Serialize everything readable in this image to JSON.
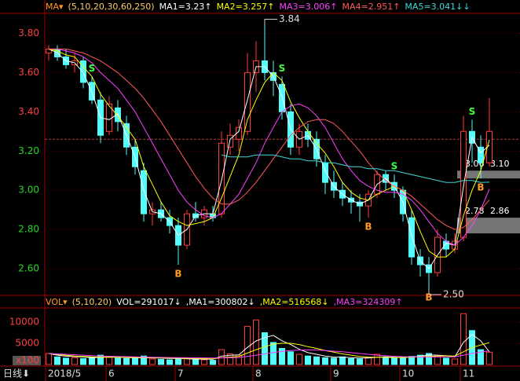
{
  "chart_data": [
    {
      "type": "candlestick",
      "header": [
        "MA▾",
        "(5,10,20,30,60,250)"
      ],
      "up_color": "#ff3c3c",
      "down_color": "#54fcfc",
      "text_up_color": "#ff4040",
      "text_down_color": "#28d828",
      "ylim": [
        2.48,
        3.89
      ],
      "yticks": [
        {
          "value": 2.6,
          "label": "2.60"
        },
        {
          "value": 2.8,
          "label": "2.80"
        },
        {
          "value": 3.0,
          "label": "3.00"
        },
        {
          "value": 3.2,
          "label": "3.20"
        },
        {
          "value": 3.4,
          "label": "3.40"
        },
        {
          "value": 3.6,
          "label": "3.60"
        },
        {
          "value": 3.8,
          "label": "3.80"
        }
      ],
      "grid": true,
      "reference_line": 3.26,
      "ohlc": [
        [
          3.7,
          3.74,
          3.66,
          3.72
        ],
        [
          3.72,
          3.74,
          3.66,
          3.68
        ],
        [
          3.68,
          3.72,
          3.62,
          3.64
        ],
        [
          3.64,
          3.7,
          3.6,
          3.66
        ],
        [
          3.66,
          3.68,
          3.52,
          3.55
        ],
        [
          3.55,
          3.58,
          3.44,
          3.46
        ],
        [
          3.46,
          3.5,
          3.24,
          3.28
        ],
        [
          3.3,
          3.48,
          3.28,
          3.44
        ],
        [
          3.42,
          3.46,
          3.3,
          3.35
        ],
        [
          3.34,
          3.38,
          3.18,
          3.22
        ],
        [
          3.22,
          3.26,
          3.08,
          3.12
        ],
        [
          3.1,
          3.14,
          2.84,
          2.88
        ],
        [
          2.88,
          2.94,
          2.82,
          2.9
        ],
        [
          2.9,
          2.94,
          2.84,
          2.86
        ],
        [
          2.86,
          2.9,
          2.78,
          2.82
        ],
        [
          2.82,
          2.86,
          2.62,
          2.72
        ],
        [
          2.72,
          2.9,
          2.7,
          2.88
        ],
        [
          2.88,
          2.94,
          2.84,
          2.86
        ],
        [
          2.86,
          2.92,
          2.82,
          2.9
        ],
        [
          2.88,
          2.92,
          2.84,
          2.86
        ],
        [
          2.88,
          3.3,
          2.86,
          3.24
        ],
        [
          3.22,
          3.34,
          3.18,
          3.28
        ],
        [
          3.26,
          3.36,
          3.2,
          3.32
        ],
        [
          3.3,
          3.7,
          3.28,
          3.6
        ],
        [
          3.6,
          3.76,
          3.5,
          3.66
        ],
        [
          3.66,
          3.84,
          3.56,
          3.6
        ],
        [
          3.6,
          3.66,
          3.48,
          3.56
        ],
        [
          3.54,
          3.58,
          3.36,
          3.4
        ],
        [
          3.4,
          3.44,
          3.18,
          3.22
        ],
        [
          3.22,
          3.34,
          3.18,
          3.3
        ],
        [
          3.3,
          3.34,
          3.22,
          3.26
        ],
        [
          3.26,
          3.3,
          3.12,
          3.16
        ],
        [
          3.14,
          3.18,
          2.98,
          3.04
        ],
        [
          3.04,
          3.1,
          2.96,
          3.0
        ],
        [
          3.0,
          3.04,
          2.92,
          2.96
        ],
        [
          2.96,
          3.0,
          2.88,
          2.94
        ],
        [
          2.94,
          2.98,
          2.84,
          2.92
        ],
        [
          2.92,
          3.0,
          2.86,
          2.98
        ],
        [
          2.98,
          3.1,
          2.96,
          3.08
        ],
        [
          3.08,
          3.1,
          3.0,
          3.04
        ],
        [
          3.04,
          3.08,
          2.96,
          3.0
        ],
        [
          3.0,
          3.02,
          2.84,
          2.88
        ],
        [
          2.86,
          2.9,
          2.62,
          2.66
        ],
        [
          2.66,
          2.7,
          2.56,
          2.62
        ],
        [
          2.62,
          2.66,
          2.5,
          2.58
        ],
        [
          2.58,
          2.8,
          2.56,
          2.76
        ],
        [
          2.74,
          2.78,
          2.66,
          2.7
        ],
        [
          2.7,
          2.78,
          2.68,
          2.74
        ],
        [
          2.76,
          3.38,
          2.74,
          3.3
        ],
        [
          3.3,
          3.36,
          3.14,
          3.24
        ],
        [
          3.22,
          3.28,
          3.06,
          3.14
        ],
        [
          3.14,
          3.47,
          3.12,
          3.3
        ]
      ],
      "series": [
        {
          "name": "MA1=3.23↑",
          "color": "#ffffff",
          "values": [
            3.72,
            3.7,
            3.66,
            3.65,
            3.6,
            3.5,
            3.37,
            3.36,
            3.39,
            3.28,
            3.17,
            3.0,
            2.89,
            2.88,
            2.84,
            2.77,
            2.8,
            2.87,
            2.88,
            2.88,
            3.05,
            3.26,
            3.3,
            3.46,
            3.63,
            3.63,
            3.58,
            3.48,
            3.31,
            3.26,
            3.28,
            3.21,
            3.1,
            3.02,
            2.98,
            2.95,
            2.93,
            2.95,
            3.03,
            3.06,
            3.02,
            2.94,
            2.77,
            2.64,
            2.6,
            2.67,
            2.73,
            2.72,
            3.02,
            3.27,
            3.19,
            3.23
          ]
        },
        {
          "name": "MA2=3.257↑",
          "color": "#ffff00",
          "values": [
            3.72,
            3.71,
            3.69,
            3.68,
            3.63,
            3.58,
            3.49,
            3.43,
            3.38,
            3.32,
            3.26,
            3.12,
            3.03,
            2.94,
            2.87,
            2.84,
            2.82,
            2.83,
            2.84,
            2.86,
            2.96,
            3.07,
            3.18,
            3.36,
            3.46,
            3.55,
            3.6,
            3.56,
            3.45,
            3.37,
            3.3,
            3.24,
            3.19,
            3.12,
            3.04,
            2.99,
            2.96,
            2.95,
            2.98,
            3.0,
            3.02,
            3.0,
            2.9,
            2.79,
            2.69,
            2.66,
            2.66,
            2.7,
            2.87,
            3.0,
            3.1,
            3.257
          ]
        },
        {
          "name": "MA3=3.006↑",
          "color": "#ff40ff",
          "values": [
            3.72,
            3.72,
            3.71,
            3.7,
            3.68,
            3.65,
            3.6,
            3.56,
            3.52,
            3.46,
            3.4,
            3.32,
            3.24,
            3.16,
            3.08,
            3.0,
            2.94,
            2.9,
            2.87,
            2.86,
            2.88,
            2.93,
            2.98,
            3.06,
            3.14,
            3.24,
            3.32,
            3.4,
            3.43,
            3.44,
            3.42,
            3.38,
            3.32,
            3.24,
            3.16,
            3.1,
            3.05,
            3.02,
            3.0,
            2.99,
            2.99,
            2.98,
            2.95,
            2.9,
            2.84,
            2.78,
            2.74,
            2.72,
            2.76,
            2.82,
            2.9,
            3.006
          ]
        },
        {
          "name": "MA4=2.951↑",
          "color": "#ff5a5a",
          "values": [
            3.72,
            3.72,
            3.72,
            3.71,
            3.7,
            3.68,
            3.66,
            3.63,
            3.6,
            3.56,
            3.52,
            3.47,
            3.41,
            3.35,
            3.28,
            3.21,
            3.14,
            3.07,
            3.01,
            2.96,
            2.93,
            2.93,
            2.95,
            2.99,
            3.04,
            3.1,
            3.16,
            3.22,
            3.28,
            3.32,
            3.35,
            3.36,
            3.36,
            3.34,
            3.3,
            3.25,
            3.2,
            3.14,
            3.09,
            3.05,
            3.02,
            3.0,
            2.97,
            2.93,
            2.89,
            2.85,
            2.82,
            2.8,
            2.81,
            2.85,
            2.9,
            2.951
          ]
        },
        {
          "name": "MA5=3.041↓↓",
          "color": "#40d8d8",
          "values": [
            null,
            null,
            null,
            null,
            null,
            null,
            null,
            null,
            null,
            null,
            null,
            null,
            null,
            null,
            null,
            null,
            null,
            null,
            null,
            null,
            3.18,
            3.17,
            3.17,
            3.17,
            3.18,
            3.18,
            3.18,
            3.17,
            3.16,
            3.16,
            3.15,
            3.15,
            3.14,
            3.14,
            3.13,
            3.12,
            3.12,
            3.11,
            3.11,
            3.1,
            3.1,
            3.09,
            3.08,
            3.07,
            3.06,
            3.05,
            3.04,
            3.04,
            3.05,
            3.05,
            3.04,
            3.041
          ]
        }
      ],
      "signals": [
        {
          "label": "S",
          "at": 5,
          "color": "#40ff40"
        },
        {
          "label": "B",
          "at": 15,
          "color": "#ff9a20"
        },
        {
          "label": "S",
          "at": 27,
          "color": "#40ff40"
        },
        {
          "label": "B",
          "at": 37,
          "color": "#ff9a20"
        },
        {
          "label": "S",
          "at": 40,
          "color": "#40ff40"
        },
        {
          "label": "B",
          "at": 44,
          "color": "#ff9a20"
        },
        {
          "label": "S",
          "at": 49,
          "color": "#40ff40"
        },
        {
          "label": "B",
          "at": 50,
          "color": "#ff9a20"
        }
      ],
      "extremes": [
        {
          "value": 3.84,
          "at": 25
        },
        {
          "value": 2.5,
          "at": 44,
          "label": "2.50"
        }
      ],
      "zones": [
        {
          "low": 3.06,
          "high": {
            "value": 3.1,
            "label": "3.10"
          }
        },
        {
          "low": 2.78,
          "high": 2.86
        }
      ]
    },
    {
      "type": "bar",
      "header": [
        "VOL▾",
        "(5,10,20)"
      ],
      "series_name": "VOL=291017↓",
      "ylim": [
        0,
        12780
      ],
      "yticks": [
        5000,
        10000
      ],
      "unit_label": "x100",
      "period_label": "日线⬇",
      "categories": [
        "2018/5",
        null,
        null,
        null,
        null,
        null,
        null,
        "6",
        null,
        null,
        null,
        null,
        null,
        null,
        null,
        "7",
        null,
        null,
        null,
        null,
        null,
        null,
        null,
        null,
        "8",
        null,
        null,
        null,
        null,
        null,
        null,
        null,
        null,
        "9",
        null,
        null,
        null,
        null,
        null,
        null,
        null,
        "10",
        null,
        null,
        null,
        null,
        null,
        null,
        "11",
        null,
        null,
        null
      ],
      "values": [
        2600,
        1800,
        1500,
        1600,
        1400,
        1700,
        2200,
        1800,
        1500,
        1400,
        1600,
        2000,
        1300,
        1200,
        1100,
        1400,
        1500,
        1200,
        1100,
        1000,
        3500,
        2500,
        2200,
        9000,
        10500,
        7500,
        5200,
        3800,
        3000,
        2400,
        2000,
        1800,
        1600,
        1500,
        1800,
        1400,
        1300,
        1600,
        2400,
        1800,
        1500,
        1700,
        1900,
        2200,
        2600,
        2000,
        1500,
        1300,
        12000,
        8000,
        3500,
        2910.17
      ],
      "series": [
        {
          "name": ",MA1=300802↓",
          "color": "#ffffff",
          "values": [
            2600,
            2200,
            1970,
            1870,
            1780,
            1600,
            1680,
            1760,
            1720,
            1620,
            1580,
            1600,
            1560,
            1500,
            1440,
            1440,
            1340,
            1280,
            1260,
            1240,
            1960,
            2160,
            2260,
            4040,
            5560,
            6340,
            6880,
            5600,
            4700,
            3600,
            2800,
            2400,
            2000,
            1750,
            1740,
            1620,
            1520,
            1520,
            1700,
            1800,
            1700,
            1660,
            1780,
            1920,
            2250,
            2200,
            2050,
            1800,
            5200,
            7100,
            5600,
            3008.02
          ]
        },
        {
          "name": ",MA2=516568↓",
          "color": "#ffff00",
          "values": [
            2600,
            2400,
            2200,
            2000,
            1900,
            1800,
            1750,
            1720,
            1700,
            1680,
            1650,
            1640,
            1620,
            1580,
            1540,
            1500,
            1470,
            1420,
            1380,
            1340,
            1600,
            1750,
            1900,
            2700,
            3500,
            4200,
            4800,
            5000,
            5000,
            4700,
            4200,
            3800,
            3300,
            2900,
            2500,
            2200,
            1900,
            1750,
            1700,
            1680,
            1650,
            1650,
            1700,
            1800,
            1900,
            2000,
            2050,
            2000,
            3000,
            4000,
            4600,
            5165.68
          ]
        },
        {
          "name": ",MA3=324309↑",
          "color": "#ff40ff",
          "values": [
            2600,
            2500,
            2400,
            2300,
            2200,
            2100,
            2000,
            1950,
            1900,
            1850,
            1800,
            1750,
            1700,
            1680,
            1650,
            1620,
            1600,
            1580,
            1550,
            1520,
            1550,
            1600,
            1650,
            1900,
            2200,
            2500,
            2800,
            3100,
            3300,
            3400,
            3450,
            3400,
            3300,
            3150,
            3000,
            2800,
            2600,
            2400,
            2200,
            2050,
            1950,
            1850,
            1800,
            1780,
            1770,
            1780,
            1800,
            1820,
            2200,
            2600,
            2900,
            3243.09
          ]
        }
      ]
    }
  ]
}
